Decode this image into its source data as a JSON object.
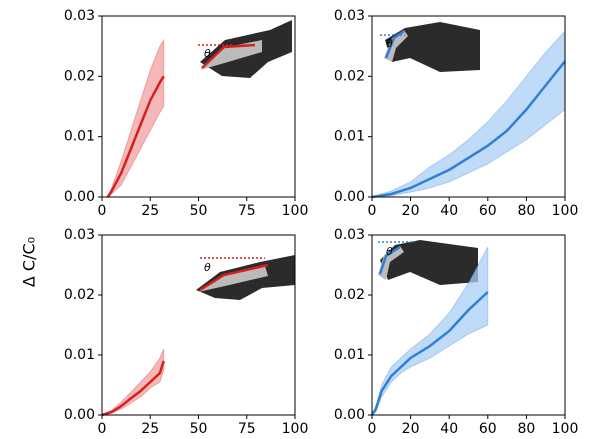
{
  "ylabel": "Δ C/C₀",
  "chart_data": [
    {
      "type": "band-line",
      "color": "#d91e1e",
      "band_color": "#f2a0a0",
      "annotation": "θ",
      "x": [
        3,
        5,
        10,
        15,
        20,
        25,
        30,
        32
      ],
      "values": [
        0,
        0.001,
        0.004,
        0.008,
        0.012,
        0.016,
        0.019,
        0.02
      ],
      "upper": [
        0,
        0.0015,
        0.006,
        0.011,
        0.016,
        0.021,
        0.025,
        0.026
      ],
      "lower": [
        0,
        0.0005,
        0.002,
        0.005,
        0.008,
        0.011,
        0.014,
        0.015
      ],
      "xlim": [
        0,
        100
      ],
      "ylim": [
        0,
        0.03
      ],
      "xticks": [
        0,
        25,
        50,
        75,
        100
      ],
      "yticks": [
        {
          "value": 0,
          "label": "0.00"
        },
        {
          "value": 0.01,
          "label": "0.01"
        },
        {
          "value": 0.02,
          "label": "0.02"
        },
        {
          "value": 0.03,
          "label": "0.03"
        }
      ]
    },
    {
      "type": "band-line",
      "color": "#2e7fd6",
      "band_color": "#a9cff5",
      "annotation": "θ",
      "x": [
        0,
        10,
        20,
        30,
        40,
        50,
        60,
        70,
        80,
        90,
        100
      ],
      "values": [
        0,
        0.0005,
        0.0015,
        0.003,
        0.0045,
        0.0065,
        0.0085,
        0.011,
        0.0145,
        0.0185,
        0.0225
      ],
      "upper": [
        0,
        0.001,
        0.0025,
        0.005,
        0.007,
        0.0095,
        0.0125,
        0.016,
        0.02,
        0.024,
        0.0275
      ],
      "lower": [
        0,
        0.0002,
        0.0008,
        0.0015,
        0.0025,
        0.004,
        0.0055,
        0.0075,
        0.0095,
        0.012,
        0.0145
      ],
      "xlim": [
        0,
        100
      ],
      "ylim": [
        0,
        0.03
      ],
      "xticks": [
        0,
        20,
        40,
        60,
        80,
        100
      ],
      "yticks": [
        {
          "value": 0,
          "label": "0.00"
        },
        {
          "value": 0.01,
          "label": "0.01"
        },
        {
          "value": 0.02,
          "label": "0.02"
        },
        {
          "value": 0.03,
          "label": "0.03"
        }
      ]
    },
    {
      "type": "band-line",
      "color": "#d91e1e",
      "band_color": "#f2a0a0",
      "annotation": "θ",
      "x": [
        0,
        5,
        10,
        15,
        20,
        25,
        30,
        32
      ],
      "values": [
        0,
        0.0005,
        0.0015,
        0.0028,
        0.004,
        0.0055,
        0.007,
        0.009
      ],
      "upper": [
        0,
        0.0008,
        0.0022,
        0.0038,
        0.0055,
        0.0072,
        0.0095,
        0.011
      ],
      "lower": [
        0,
        0.0003,
        0.001,
        0.002,
        0.003,
        0.0045,
        0.0055,
        0.0075
      ],
      "xlim": [
        0,
        100
      ],
      "ylim": [
        0,
        0.03
      ],
      "xticks": [
        0,
        25,
        50,
        75,
        100
      ],
      "yticks": [
        {
          "value": 0,
          "label": "0.00"
        },
        {
          "value": 0.01,
          "label": "0.01"
        },
        {
          "value": 0.02,
          "label": "0.02"
        },
        {
          "value": 0.03,
          "label": "0.03"
        }
      ]
    },
    {
      "type": "band-line",
      "color": "#2e7fd6",
      "band_color": "#a9cff5",
      "annotation": "θ",
      "x": [
        0,
        2,
        5,
        10,
        15,
        20,
        30,
        40,
        50,
        60
      ],
      "values": [
        0,
        0.001,
        0.004,
        0.0065,
        0.008,
        0.0095,
        0.0115,
        0.014,
        0.0175,
        0.0205
      ],
      "upper": [
        0,
        0.0015,
        0.005,
        0.008,
        0.0095,
        0.011,
        0.0135,
        0.017,
        0.022,
        0.028
      ],
      "lower": [
        0,
        0.0005,
        0.003,
        0.0055,
        0.007,
        0.008,
        0.0095,
        0.0115,
        0.0135,
        0.015
      ],
      "xlim": [
        0,
        100
      ],
      "ylim": [
        0,
        0.03
      ],
      "xticks": [
        0,
        20,
        40,
        60,
        80,
        100
      ],
      "yticks": [
        {
          "value": 0,
          "label": "0.00"
        },
        {
          "value": 0.01,
          "label": "0.01"
        },
        {
          "value": 0.02,
          "label": "0.02"
        },
        {
          "value": 0.03,
          "label": "0.03"
        }
      ]
    }
  ]
}
